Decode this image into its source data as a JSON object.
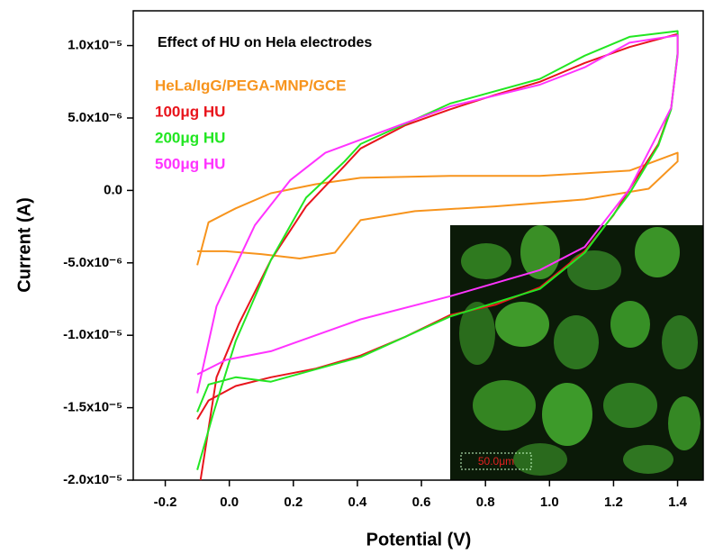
{
  "chart_data": {
    "type": "line",
    "annotation": "Effect of HU on Hela electrodes",
    "x_label": "Potential (V)",
    "y_label": "Current (A)",
    "inset_scale_label": "50.0μm",
    "xlim": [
      -0.3,
      1.48
    ],
    "ylim": [
      -2e-05,
      1.24e-05
    ],
    "xticks": [
      -0.2,
      {
        "value": 0,
        "label": "0.0"
      },
      0.2,
      0.4,
      0.6,
      0.8,
      {
        "value": 1,
        "label": "1.0"
      },
      1.2,
      1.4
    ],
    "yticks": [
      {
        "value": -2e-05,
        "label": "-2.0x10⁻⁵"
      },
      {
        "value": -1.5e-05,
        "label": "-1.5x10⁻⁵"
      },
      {
        "value": -1e-05,
        "label": "-1.0x10⁻⁵"
      },
      {
        "value": -5e-06,
        "label": "-5.0x10⁻⁶"
      },
      {
        "value": 0,
        "label": "0.0"
      },
      {
        "value": 5e-06,
        "label": "5.0x10⁻⁶"
      },
      {
        "value": 1e-05,
        "label": "1.0x10⁻⁵"
      }
    ],
    "series": [
      {
        "name": "HeLa/IgG/PEGA-MNP/GCE",
        "color": "#f7941d",
        "x": [
          -0.1,
          -0.065,
          0.02,
          0.13,
          0.27,
          0.41,
          0.69,
          0.97,
          1.25,
          1.4,
          1.4,
          1.31,
          1.11,
          0.83,
          0.58,
          0.41,
          0.33,
          0.22,
          0.1,
          -0.01,
          -0.1
        ],
        "values": [
          -5.16e-06,
          -2.2e-06,
          -1.24e-06,
          -1.9e-07,
          4.3e-07,
          8.7e-07,
          1e-06,
          1e-06,
          1.37e-06,
          2.6e-06,
          2e-06,
          1.2e-07,
          -6.2e-07,
          -1.1e-06,
          -1.43e-06,
          -2.05e-06,
          -4.3e-06,
          -4.7e-06,
          -4.4e-06,
          -4.2e-06,
          -4.2e-06
        ]
      },
      {
        "name": "100μg HU",
        "color": "#e8141c",
        "x": [
          -0.09,
          -0.04,
          0.03,
          0.13,
          0.24,
          0.36,
          0.41,
          0.55,
          0.69,
          0.83,
          0.97,
          1.11,
          1.25,
          1.4,
          1.4,
          1.38,
          1.34,
          1.25,
          1.2,
          1.11,
          0.97,
          0.83,
          0.69,
          0.55,
          0.41,
          0.27,
          0.13,
          0.02,
          -0.065,
          -0.1
        ],
        "values": [
          -2e-05,
          -1.29e-05,
          -9.2e-06,
          -4.8e-06,
          -1.1e-06,
          1.7e-06,
          2.9e-06,
          4.5e-06,
          5.6e-06,
          6.6e-06,
          7.5e-06,
          8.8e-06,
          9.9e-06,
          1.08e-05,
          9.4e-06,
          5.7e-06,
          3.2e-06,
          1e-07,
          -1.7e-06,
          -4.2e-06,
          -6.7e-06,
          -7.9e-06,
          -8.6e-06,
          -1.01e-05,
          -1.14e-05,
          -1.23e-05,
          -1.29e-05,
          -1.35e-05,
          -1.45e-05,
          -1.58e-05
        ]
      },
      {
        "name": "200μg HU",
        "color": "#22e622",
        "x": [
          -0.1,
          -0.05,
          0.02,
          0.13,
          0.24,
          0.36,
          0.41,
          0.69,
          0.97,
          1.11,
          1.25,
          1.4,
          1.4,
          1.38,
          1.34,
          1.25,
          1.11,
          0.97,
          0.69,
          0.41,
          0.13,
          0.02,
          -0.065,
          -0.1
        ],
        "values": [
          -1.93e-05,
          -1.54e-05,
          -1.04e-05,
          -4.8e-06,
          -5e-07,
          2e-06,
          3.2e-06,
          6e-06,
          7.7e-06,
          9.3e-06,
          1.06e-05,
          1.1e-05,
          9.5e-06,
          5.6e-06,
          3.1e-06,
          -2e-07,
          -4.3e-06,
          -6.8e-06,
          -8.7e-06,
          -1.15e-05,
          -1.32e-05,
          -1.29e-05,
          -1.34e-05,
          -1.53e-05
        ]
      },
      {
        "name": "500μg HU",
        "color": "#ff33ff",
        "x": [
          -0.1,
          -0.04,
          0.08,
          0.19,
          0.3,
          0.41,
          0.69,
          0.97,
          1.11,
          1.25,
          1.4,
          1.4,
          1.38,
          1.25,
          1.11,
          0.97,
          0.69,
          0.41,
          0.13,
          -0.01,
          -0.1
        ],
        "values": [
          -1.4e-05,
          -8e-06,
          -2.4e-06,
          7e-07,
          2.6e-06,
          3.5e-06,
          5.8e-06,
          7.3e-06,
          8.5e-06,
          1.02e-05,
          1.07e-05,
          9.3e-06,
          5.7e-06,
          1e-07,
          -3.9e-06,
          -5.5e-06,
          -7.3e-06,
          -8.9e-06,
          -1.11e-05,
          -1.17e-05,
          -1.27e-05
        ]
      }
    ]
  }
}
